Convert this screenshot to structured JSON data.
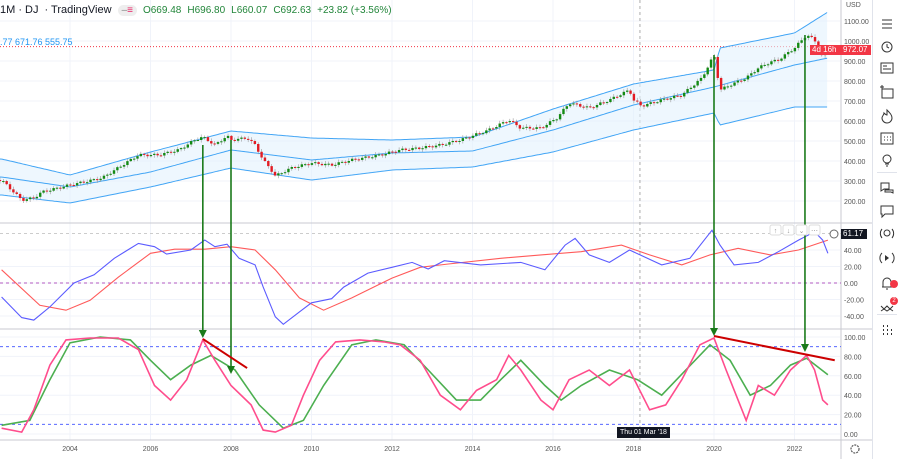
{
  "header": {
    "interval_symbol": "1M · DJ",
    "source": "· TradingView",
    "open": "O669.48",
    "high": "H696.80",
    "low": "L660.07",
    "close": "C692.63",
    "change": "+23.82 (+3.56%)",
    "band_values": ".77 671.76 555.75"
  },
  "price_axis": {
    "currency": "USD",
    "last_price": "972.07",
    "countdown": "4d 16h",
    "osc1_last": "61.17"
  },
  "crosshair_label": "Thu 01 Mar '18",
  "colors": {
    "up": "#138a13",
    "down": "#e31b23",
    "band": "#42a5f5",
    "band_fill": "#e3f2fd",
    "osc1_fast": "#5b5bff",
    "osc1_slow": "#ff5a5a",
    "osc2_fast": "#ff4d8d",
    "osc2_slow": "#4caf50",
    "arrow": "#1a7a1a",
    "trendline": "#cc0000"
  },
  "toolbar_icons": [
    "watchlist-icon",
    "alarm-icon",
    "news-icon",
    "add-list-icon",
    "hotlist-icon",
    "calendar-icon",
    "ideas-icon",
    "chats-icon",
    "chat-icon",
    "ideas-stream-icon",
    "streams-icon",
    "notifications-icon",
    "pattern-icon",
    "dots-grid-icon"
  ],
  "notifications_count": "2",
  "chart_data": [
    {
      "type": "candlestick",
      "title": "",
      "ylim": [
        100,
        1150
      ],
      "y_ticks": [
        "200.00",
        "300.00",
        "400.00",
        "500.00",
        "600.00",
        "700.00",
        "800.00",
        "900.00",
        "1000.00",
        "1100.00"
      ],
      "x_ticks": [
        "2004",
        "2006",
        "2008",
        "2010",
        "2012",
        "2014",
        "2016",
        "2018",
        "2020",
        "2022"
      ],
      "close": [
        [
          2002.3,
          305
        ],
        [
          2002.8,
          205
        ],
        [
          2003.1,
          215
        ],
        [
          2003.3,
          245
        ],
        [
          2004.0,
          280
        ],
        [
          2004.8,
          315
        ],
        [
          2005.5,
          405
        ],
        [
          2005.7,
          430
        ],
        [
          2006.2,
          430
        ],
        [
          2006.7,
          455
        ],
        [
          2007.1,
          505
        ],
        [
          2007.3,
          520
        ],
        [
          2007.6,
          480
        ],
        [
          2007.9,
          525
        ],
        [
          2008.0,
          505
        ],
        [
          2008.4,
          515
        ],
        [
          2008.6,
          480
        ],
        [
          2008.8,
          405
        ],
        [
          2009.0,
          355
        ],
        [
          2009.1,
          325
        ],
        [
          2009.5,
          365
        ],
        [
          2010.0,
          390
        ],
        [
          2010.5,
          380
        ],
        [
          2011.0,
          405
        ],
        [
          2011.7,
          430
        ],
        [
          2012.2,
          455
        ],
        [
          2012.7,
          465
        ],
        [
          2013.2,
          480
        ],
        [
          2013.7,
          505
        ],
        [
          2014.4,
          555
        ],
        [
          2014.9,
          605
        ],
        [
          2015.2,
          565
        ],
        [
          2015.7,
          565
        ],
        [
          2016.1,
          615
        ],
        [
          2016.4,
          690
        ],
        [
          2016.9,
          665
        ],
        [
          2017.4,
          705
        ],
        [
          2017.9,
          755
        ],
        [
          2018.0,
          705
        ],
        [
          2018.2,
          675
        ],
        [
          2018.7,
          705
        ],
        [
          2019.2,
          730
        ],
        [
          2019.7,
          815
        ],
        [
          2020.0,
          930
        ],
        [
          2020.15,
          755
        ],
        [
          2020.4,
          780
        ],
        [
          2020.8,
          815
        ],
        [
          2021.1,
          865
        ],
        [
          2021.4,
          895
        ],
        [
          2021.6,
          905
        ],
        [
          2022.0,
          965
        ],
        [
          2022.3,
          1030
        ],
        [
          2022.5,
          1005
        ],
        [
          2022.7,
          915
        ],
        [
          2022.83,
          972
        ]
      ],
      "bands": {
        "upper": [
          [
            2002.3,
            410
          ],
          [
            2004.0,
            330
          ],
          [
            2006.0,
            445
          ],
          [
            2008.0,
            550
          ],
          [
            2010.0,
            515
          ],
          [
            2012.0,
            505
          ],
          [
            2014.0,
            520
          ],
          [
            2016.0,
            660
          ],
          [
            2018.0,
            785
          ],
          [
            2020.0,
            855
          ],
          [
            2020.15,
            965
          ],
          [
            2022.0,
            1040
          ],
          [
            2022.83,
            1145
          ]
        ],
        "middle": [
          [
            2002.3,
            320
          ],
          [
            2004.0,
            270
          ],
          [
            2006.0,
            345
          ],
          [
            2008.0,
            455
          ],
          [
            2010.0,
            405
          ],
          [
            2012.0,
            440
          ],
          [
            2014.0,
            450
          ],
          [
            2016.0,
            555
          ],
          [
            2018.0,
            680
          ],
          [
            2020.0,
            770
          ],
          [
            2022.0,
            880
          ],
          [
            2022.83,
            915
          ]
        ],
        "lower": [
          [
            2002.3,
            230
          ],
          [
            2004.0,
            190
          ],
          [
            2006.0,
            270
          ],
          [
            2008.0,
            365
          ],
          [
            2010.0,
            305
          ],
          [
            2012.0,
            355
          ],
          [
            2014.0,
            370
          ],
          [
            2016.0,
            445
          ],
          [
            2018.0,
            555
          ],
          [
            2020.0,
            640
          ],
          [
            2020.15,
            580
          ],
          [
            2022.0,
            670
          ],
          [
            2022.83,
            670
          ]
        ]
      }
    },
    {
      "type": "line",
      "ylim": [
        -50,
        60
      ],
      "y_ticks": [
        "-40.00",
        "-20.00",
        "0.00",
        "20.00",
        "40.00"
      ],
      "series": [
        {
          "values": [
            [
              2002.3,
              -17
            ],
            [
              2002.8,
              -42
            ],
            [
              2003.1,
              -45
            ],
            [
              2003.5,
              -29
            ],
            [
              2004.1,
              0
            ],
            [
              2004.6,
              10
            ],
            [
              2005.1,
              30
            ],
            [
              2005.7,
              48
            ],
            [
              2006.1,
              44
            ],
            [
              2006.4,
              35
            ],
            [
              2007.0,
              40
            ],
            [
              2007.35,
              52
            ],
            [
              2007.6,
              44
            ],
            [
              2007.9,
              47
            ],
            [
              2008.2,
              30
            ],
            [
              2008.6,
              22
            ],
            [
              2008.8,
              -5
            ],
            [
              2009.1,
              -41
            ],
            [
              2009.3,
              -50
            ],
            [
              2009.7,
              -35
            ],
            [
              2010.0,
              -24
            ],
            [
              2010.5,
              -19
            ],
            [
              2010.8,
              -5
            ],
            [
              2011.4,
              12
            ],
            [
              2012.0,
              19
            ],
            [
              2012.5,
              25
            ],
            [
              2012.9,
              17
            ],
            [
              2013.3,
              27
            ],
            [
              2014.2,
              22
            ],
            [
              2015.2,
              25
            ],
            [
              2015.8,
              16
            ],
            [
              2016.3,
              46
            ],
            [
              2016.55,
              54
            ],
            [
              2016.9,
              34
            ],
            [
              2017.4,
              25
            ],
            [
              2017.9,
              40
            ],
            [
              2018.7,
              22
            ],
            [
              2019.4,
              30
            ],
            [
              2019.95,
              64
            ],
            [
              2020.15,
              46
            ],
            [
              2020.5,
              22
            ],
            [
              2021.1,
              25
            ],
            [
              2021.6,
              38
            ],
            [
              2022.1,
              52
            ],
            [
              2022.5,
              62
            ],
            [
              2022.7,
              52
            ],
            [
              2022.83,
              36
            ]
          ]
        },
        {
          "values": [
            [
              2002.3,
              16
            ],
            [
              2003.25,
              -27
            ],
            [
              2003.9,
              -33
            ],
            [
              2004.5,
              -21
            ],
            [
              2005.2,
              7
            ],
            [
              2006.0,
              36
            ],
            [
              2006.6,
              41
            ],
            [
              2007.35,
              41
            ],
            [
              2008.0,
              44
            ],
            [
              2008.6,
              40
            ],
            [
              2009.1,
              16
            ],
            [
              2009.7,
              -18
            ],
            [
              2010.3,
              -33
            ],
            [
              2011.0,
              -18
            ],
            [
              2012.0,
              6
            ],
            [
              2012.7,
              19
            ],
            [
              2013.4,
              23
            ],
            [
              2014.7,
              30
            ],
            [
              2015.7,
              34
            ],
            [
              2016.7,
              38
            ],
            [
              2017.7,
              46
            ],
            [
              2018.4,
              34
            ],
            [
              2019.2,
              22
            ],
            [
              2019.9,
              34
            ],
            [
              2020.6,
              42
            ],
            [
              2021.4,
              34
            ],
            [
              2022.1,
              40
            ],
            [
              2022.83,
              52
            ]
          ]
        }
      ],
      "reference_lines": [
        0,
        60
      ]
    },
    {
      "type": "line",
      "ylim": [
        -2,
        105
      ],
      "y_ticks": [
        "0.00",
        "20.00",
        "40.00",
        "60.00",
        "80.00",
        "100.00"
      ],
      "series": [
        {
          "values": [
            [
              2002.3,
              6
            ],
            [
              2002.8,
              2
            ],
            [
              2003.1,
              25
            ],
            [
              2003.5,
              71
            ],
            [
              2003.9,
              97
            ],
            [
              2004.5,
              99
            ],
            [
              2005.2,
              99
            ],
            [
              2005.7,
              87
            ],
            [
              2006.1,
              50
            ],
            [
              2006.5,
              35
            ],
            [
              2006.9,
              56
            ],
            [
              2007.3,
              97
            ],
            [
              2007.6,
              76
            ],
            [
              2008.0,
              50
            ],
            [
              2008.5,
              30
            ],
            [
              2008.8,
              4
            ],
            [
              2009.1,
              2
            ],
            [
              2009.5,
              9
            ],
            [
              2009.8,
              40
            ],
            [
              2010.2,
              76
            ],
            [
              2010.6,
              95
            ],
            [
              2011.2,
              97
            ],
            [
              2011.8,
              95
            ],
            [
              2012.2,
              92
            ],
            [
              2012.7,
              76
            ],
            [
              2013.2,
              40
            ],
            [
              2013.7,
              25
            ],
            [
              2014.1,
              45
            ],
            [
              2014.6,
              56
            ],
            [
              2014.9,
              81
            ],
            [
              2015.2,
              66
            ],
            [
              2015.7,
              35
            ],
            [
              2016.0,
              25
            ],
            [
              2016.4,
              56
            ],
            [
              2016.9,
              66
            ],
            [
              2017.4,
              50
            ],
            [
              2017.9,
              66
            ],
            [
              2018.4,
              25
            ],
            [
              2018.8,
              30
            ],
            [
              2019.2,
              56
            ],
            [
              2019.65,
              92
            ],
            [
              2020.0,
              99
            ],
            [
              2020.3,
              66
            ],
            [
              2020.8,
              14
            ],
            [
              2021.1,
              50
            ],
            [
              2021.5,
              40
            ],
            [
              2021.9,
              66
            ],
            [
              2022.3,
              81
            ],
            [
              2022.5,
              66
            ],
            [
              2022.7,
              35
            ],
            [
              2022.83,
              30
            ]
          ]
        },
        {
          "values": [
            [
              2002.3,
              9
            ],
            [
              2003.0,
              14
            ],
            [
              2003.5,
              56
            ],
            [
              2004.0,
              94
            ],
            [
              2004.75,
              100
            ],
            [
              2005.5,
              97
            ],
            [
              2006.0,
              76
            ],
            [
              2006.5,
              56
            ],
            [
              2007.0,
              71
            ],
            [
              2007.5,
              81
            ],
            [
              2008.1,
              66
            ],
            [
              2008.7,
              30
            ],
            [
              2009.3,
              6
            ],
            [
              2009.8,
              14
            ],
            [
              2010.3,
              50
            ],
            [
              2011.0,
              92
            ],
            [
              2011.6,
              97
            ],
            [
              2012.3,
              92
            ],
            [
              2012.9,
              66
            ],
            [
              2013.6,
              35
            ],
            [
              2014.2,
              35
            ],
            [
              2014.7,
              56
            ],
            [
              2015.2,
              76
            ],
            [
              2015.8,
              50
            ],
            [
              2016.2,
              35
            ],
            [
              2016.7,
              50
            ],
            [
              2017.4,
              66
            ],
            [
              2018.1,
              56
            ],
            [
              2018.7,
              40
            ],
            [
              2019.3,
              66
            ],
            [
              2019.9,
              92
            ],
            [
              2020.4,
              76
            ],
            [
              2020.9,
              40
            ],
            [
              2021.4,
              50
            ],
            [
              2021.9,
              71
            ],
            [
              2022.3,
              78
            ],
            [
              2022.83,
              61
            ]
          ]
        }
      ],
      "reference_lines": [
        10,
        90
      ]
    }
  ],
  "annotations": {
    "arrows": [
      [
        2007.3,
        2007.3
      ],
      [
        2008.0,
        2008.0
      ],
      [
        2020.0,
        2020.0
      ],
      [
        2022.26,
        2022.26
      ]
    ],
    "trendlines": [
      [
        [
          2007.3,
          98
        ],
        [
          2008.4,
          68
        ]
      ],
      [
        [
          2020.0,
          101
        ],
        [
          2023.0,
          76
        ]
      ]
    ]
  }
}
